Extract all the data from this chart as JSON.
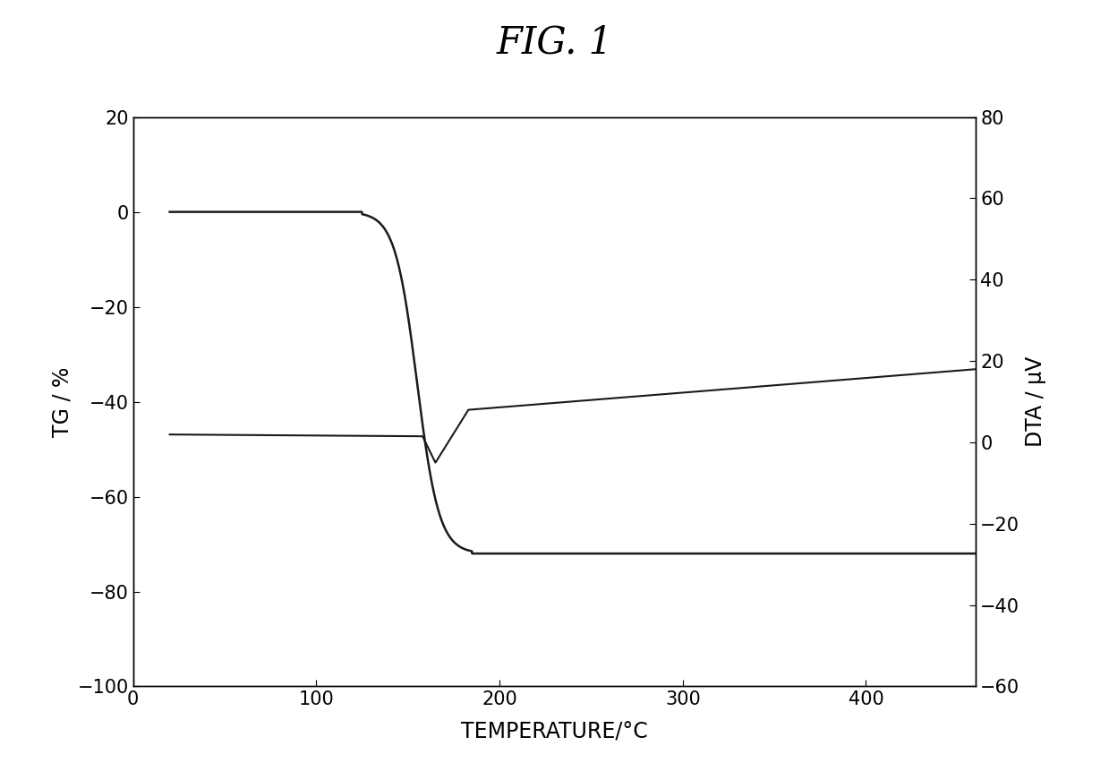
{
  "title": "FIG. 1",
  "xlabel": "TEMPERATURE/°C",
  "ylabel_left": "TG / %",
  "ylabel_right": "DTA / μV",
  "xlim": [
    0,
    460
  ],
  "ylim_left": [
    -100,
    20
  ],
  "ylim_right": [
    -60,
    80
  ],
  "yticks_left": [
    -100,
    -80,
    -60,
    -40,
    -20,
    0,
    20
  ],
  "yticks_right": [
    -60,
    -40,
    -20,
    0,
    20,
    40,
    60,
    80
  ],
  "xticks": [
    0,
    100,
    200,
    300,
    400
  ],
  "line_color": "#1a1a1a",
  "background_color": "#ffffff",
  "title_fontsize": 30,
  "axis_label_fontsize": 17,
  "tick_fontsize": 15,
  "tg_start_T": 20,
  "tg_flat_end_T": 125,
  "tg_drop_mid_T": 155,
  "tg_drop_end_T": 185,
  "tg_flat_val": 0.0,
  "tg_final_val": -72.0,
  "dta_start_val": 2.0,
  "dta_flat_end_T": 158,
  "dta_dip_T": 165,
  "dta_dip_val": -5.0,
  "dta_recover_T": 183,
  "dta_recover_val": 8.0,
  "dta_end_val": 18.0,
  "dta_end_T": 460
}
